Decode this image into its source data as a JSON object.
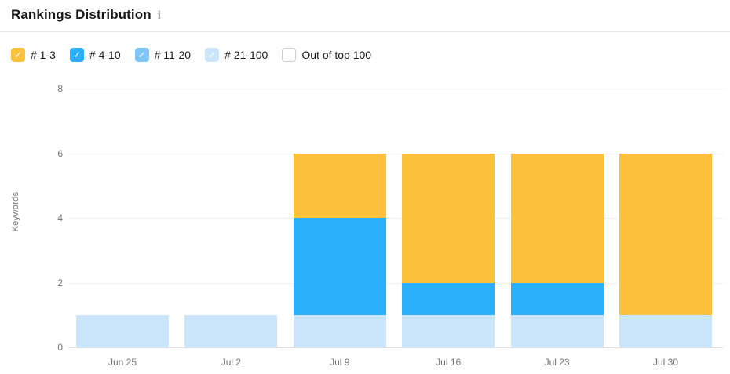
{
  "header": {
    "title": "Rankings Distribution",
    "info_icon": "i"
  },
  "legend": {
    "items": [
      {
        "label": "# 1-3",
        "checked": true,
        "color": "#FDC13C"
      },
      {
        "label": "# 4-10",
        "checked": true,
        "color": "#2BB0FB"
      },
      {
        "label": "# 11-20",
        "checked": true,
        "color": "#7EC5F8"
      },
      {
        "label": "# 21-100",
        "checked": true,
        "color": "#CBE5FA"
      },
      {
        "label": "Out of top 100",
        "checked": false,
        "color": "#FFFFFF"
      }
    ]
  },
  "chart_data": {
    "type": "bar",
    "stacked": true,
    "title": "Rankings Distribution",
    "ylabel": "Keywords",
    "xlabel": "",
    "ylim": [
      0,
      8
    ],
    "yticks": [
      0,
      2,
      4,
      6,
      8
    ],
    "grid": true,
    "legend_position": "top",
    "categories": [
      "Jun 25",
      "Jul 2",
      "Jul 9",
      "Jul 16",
      "Jul 23",
      "Jul 30"
    ],
    "series": [
      {
        "name": "# 21-100",
        "color": "#CBE5FA",
        "values": [
          1,
          1,
          1,
          1,
          1,
          1
        ]
      },
      {
        "name": "# 11-20",
        "color": "#7EC5F8",
        "values": [
          0,
          0,
          0,
          0,
          0,
          0
        ]
      },
      {
        "name": "# 4-10",
        "color": "#2BB0FB",
        "values": [
          0,
          0,
          3,
          1,
          1,
          0
        ]
      },
      {
        "name": "# 1-3",
        "color": "#FDC13C",
        "values": [
          0,
          0,
          2,
          4,
          4,
          5
        ]
      }
    ],
    "totals": [
      1,
      1,
      6,
      6,
      6,
      6
    ]
  },
  "colors": {
    "rank_1_3": "#FDC13C",
    "rank_4_10": "#2BB0FB",
    "rank_11_20": "#7EC5F8",
    "rank_21_100": "#CBE5FA",
    "grid": "#F0F0F0",
    "axis_baseline": "#DEDEDE",
    "axis_text": "#757575",
    "title_text": "#181818"
  }
}
